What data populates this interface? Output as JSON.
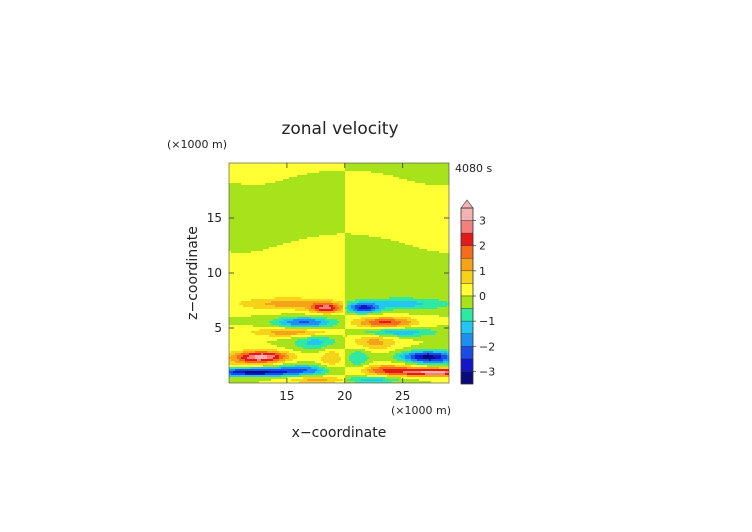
{
  "chart_data": {
    "type": "heatmap",
    "title": "zonal velocity",
    "time_label": "4080 s",
    "xlabel": "x−coordinate",
    "ylabel": "z−coordinate",
    "x_unit": "(×1000 m)",
    "y_unit": "(×1000 m)",
    "xlim": [
      10,
      29
    ],
    "ylim": [
      0,
      20
    ],
    "x_ticks": [
      15,
      20,
      25
    ],
    "x_tick_labels": [
      "15",
      "20",
      "25"
    ],
    "y_ticks": [
      5,
      10,
      15
    ],
    "y_tick_labels": [
      "5",
      "10",
      "15"
    ],
    "colorbar": {
      "ticks": [
        3,
        2,
        1,
        0,
        -1,
        -2,
        -3
      ],
      "tick_labels": [
        "3",
        "2",
        "1",
        "0",
        "−1",
        "−2",
        "−3"
      ],
      "extend": "max",
      "levels": [
        {
          "lo": 3.0,
          "hi": 3.5,
          "color": "#f5b2b2"
        },
        {
          "lo": 2.5,
          "hi": 3.0,
          "color": "#f47f7f"
        },
        {
          "lo": 2.0,
          "hi": 2.5,
          "color": "#e41a1a"
        },
        {
          "lo": 1.5,
          "hi": 2.0,
          "color": "#f76c1c"
        },
        {
          "lo": 1.0,
          "hi": 1.5,
          "color": "#f8a21a"
        },
        {
          "lo": 0.5,
          "hi": 1.0,
          "color": "#f7d21a"
        },
        {
          "lo": 0.0,
          "hi": 0.5,
          "color": "#ffff33"
        },
        {
          "lo": -0.5,
          "hi": 0.0,
          "color": "#a6e31a"
        },
        {
          "lo": -1.0,
          "hi": -0.5,
          "color": "#2ee8a4"
        },
        {
          "lo": -1.5,
          "hi": -1.0,
          "color": "#22c6f0"
        },
        {
          "lo": -2.0,
          "hi": -1.5,
          "color": "#1e8ff0"
        },
        {
          "lo": -2.5,
          "hi": -2.0,
          "color": "#1c4ce6"
        },
        {
          "lo": -3.0,
          "hi": -2.5,
          "color": "#1414c8"
        },
        {
          "lo": -3.5,
          "hi": -3.0,
          "color": "#0a0a78"
        }
      ]
    },
    "field_description_note_removed": true,
    "features": [
      {
        "x": 13.2,
        "z": 2.4,
        "value": 2.6
      },
      {
        "x": 12.5,
        "z": 1.0,
        "value": -3.2
      },
      {
        "x": 27.5,
        "z": 1.0,
        "value": 3.1
      },
      {
        "x": 27.0,
        "z": 2.3,
        "value": -2.6
      },
      {
        "x": 18.5,
        "z": 6.8,
        "value": 2.3
      },
      {
        "x": 21.5,
        "z": 6.8,
        "value": -2.3
      },
      {
        "x": 17.0,
        "z": 5.3,
        "value": -2.0
      },
      {
        "x": 23.0,
        "z": 5.3,
        "value": 2.0
      }
    ]
  }
}
